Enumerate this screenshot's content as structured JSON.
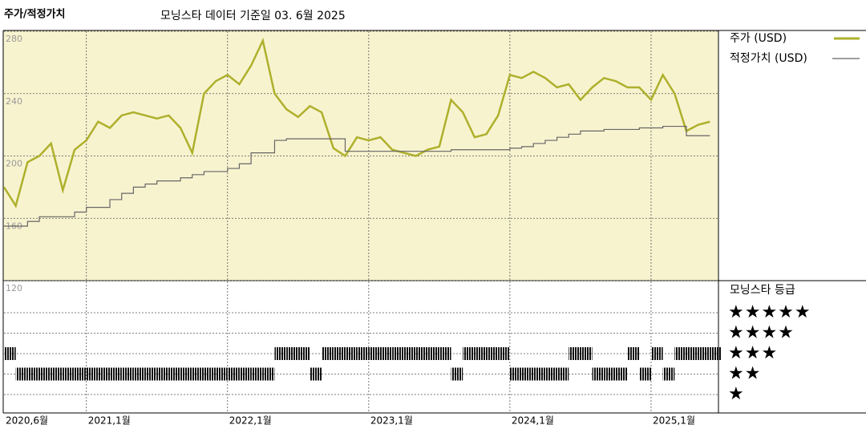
{
  "chart_data": {
    "type": "line",
    "title": "주가/적정가치",
    "subtitle": "모닝스타 데이터 기준일 03. 6월 2025",
    "x": [
      "2020-06",
      "2020-07",
      "2020-08",
      "2020-09",
      "2020-10",
      "2020-11",
      "2020-12",
      "2021-01",
      "2021-02",
      "2021-03",
      "2021-04",
      "2021-05",
      "2021-06",
      "2021-07",
      "2021-08",
      "2021-09",
      "2021-10",
      "2021-11",
      "2021-12",
      "2022-01",
      "2022-02",
      "2022-03",
      "2022-04",
      "2022-05",
      "2022-06",
      "2022-07",
      "2022-08",
      "2022-09",
      "2022-10",
      "2022-11",
      "2022-12",
      "2023-01",
      "2023-02",
      "2023-03",
      "2023-04",
      "2023-05",
      "2023-06",
      "2023-07",
      "2023-08",
      "2023-09",
      "2023-10",
      "2023-11",
      "2023-12",
      "2024-01",
      "2024-02",
      "2024-03",
      "2024-04",
      "2024-05",
      "2024-06",
      "2024-07",
      "2024-08",
      "2024-09",
      "2024-10",
      "2024-11",
      "2024-12",
      "2025-01",
      "2025-02",
      "2025-03",
      "2025-04",
      "2025-05",
      "2025-06"
    ],
    "xlim": [
      "2020-06",
      "2025-07"
    ],
    "xticks": [
      {
        "value": "2020-06",
        "label": "2020,6월"
      },
      {
        "value": "2021-01",
        "label": "2021,1월"
      },
      {
        "value": "2022-01",
        "label": "2022,1월"
      },
      {
        "value": "2023-01",
        "label": "2023,1월"
      },
      {
        "value": "2024-01",
        "label": "2024,1월"
      },
      {
        "value": "2025-01",
        "label": "2025,1월"
      }
    ],
    "ylim": [
      120,
      280
    ],
    "yticks": [
      280,
      240,
      200,
      160,
      120
    ],
    "grid": true,
    "series": [
      {
        "name": "주가 (USD)",
        "color": "#aeb02c",
        "values": [
          180,
          168,
          196,
          200,
          208,
          178,
          204,
          210,
          222,
          218,
          226,
          228,
          226,
          224,
          226,
          218,
          202,
          240,
          248,
          252,
          246,
          258,
          274,
          240,
          230,
          225,
          232,
          228,
          205,
          200,
          212,
          210,
          212,
          204,
          202,
          200,
          204,
          206,
          236,
          228,
          212,
          214,
          226,
          252,
          250,
          254,
          250,
          244,
          246,
          236,
          244,
          250,
          248,
          244,
          244,
          236,
          252,
          240,
          216,
          220,
          222
        ]
      },
      {
        "name": "적정가치 (USD)",
        "color": "#666666",
        "step": true,
        "values": [
          155,
          155,
          158,
          161,
          161,
          161,
          164,
          167,
          167,
          172,
          176,
          180,
          182,
          184,
          184,
          186,
          188,
          190,
          190,
          192,
          195,
          202,
          202,
          210,
          211,
          211,
          211,
          211,
          211,
          203,
          203,
          203,
          203,
          203,
          203,
          203,
          203,
          203,
          204,
          204,
          204,
          204,
          204,
          205,
          206,
          208,
          210,
          212,
          214,
          216,
          216,
          217,
          217,
          217,
          218,
          218,
          219,
          219,
          213,
          213,
          213
        ]
      }
    ],
    "rating": {
      "title": "모닝스타 등급",
      "levels": [
        {
          "value": 5,
          "label": "★★★★★"
        },
        {
          "value": 4,
          "label": "★★★★"
        },
        {
          "value": 3,
          "label": "★★★"
        },
        {
          "value": 2,
          "label": "★★"
        },
        {
          "value": 1,
          "label": "★"
        }
      ],
      "values": [
        3,
        2,
        2,
        2,
        2,
        2,
        2,
        2,
        2,
        2,
        2,
        2,
        2,
        2,
        2,
        2,
        2,
        2,
        2,
        2,
        2,
        2,
        2,
        3,
        3,
        3,
        2,
        3,
        3,
        3,
        3,
        3,
        3,
        3,
        3,
        3,
        3,
        3,
        2,
        3,
        3,
        3,
        3,
        2,
        2,
        2,
        2,
        2,
        3,
        3,
        2,
        2,
        2,
        3,
        2,
        3,
        2,
        3,
        3,
        3,
        3
      ]
    }
  }
}
